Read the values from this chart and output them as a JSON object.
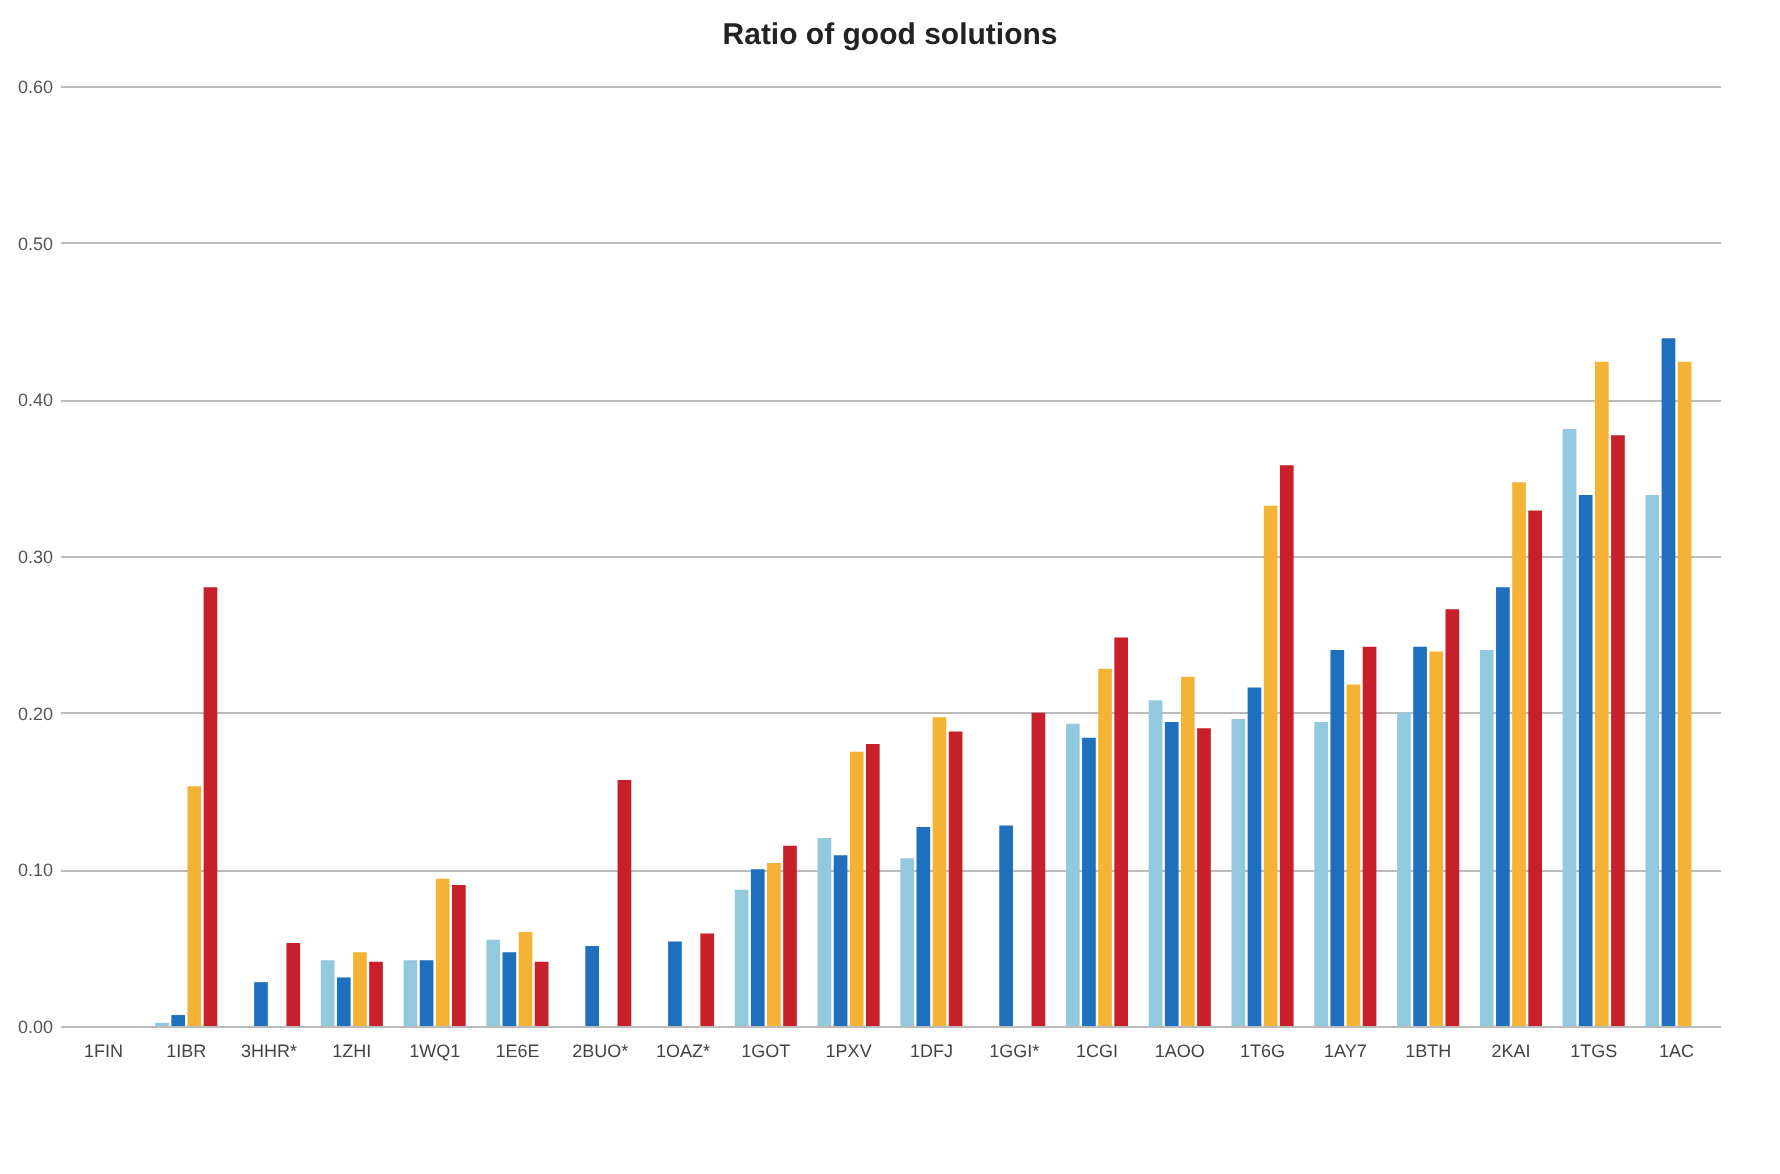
{
  "chart_data": {
    "type": "bar",
    "title": "Ratio of good solutions",
    "categories": [
      "1FIN",
      "1IBR",
      "3HHR*",
      "1ZHI",
      "1WQ1",
      "1E6E",
      "2BUO*",
      "1OAZ*",
      "1GOT",
      "1PXV",
      "1DFJ",
      "1GGI*",
      "1CGI",
      "1AOO",
      "1T6G",
      "1AY7",
      "1BTH",
      "2KAI",
      "1TGS",
      "1AC"
    ],
    "series": [
      {
        "color": "#92c9df",
        "values": [
          0,
          0.002,
          0,
          0.042,
          0.042,
          0.055,
          0,
          0,
          0.087,
          0.12,
          0.107,
          0,
          0.193,
          0.208,
          0.196,
          0.194,
          0.2,
          0.24,
          0.381,
          0.339
        ]
      },
      {
        "color": "#1f6fbf",
        "values": [
          0,
          0.007,
          0.028,
          0.031,
          0.042,
          0.047,
          0.051,
          0.054,
          0.1,
          0.109,
          0.127,
          0.128,
          0.184,
          0.194,
          0.216,
          0.24,
          0.242,
          0.28,
          0.339,
          0.439
        ]
      },
      {
        "color": "#f5b335",
        "values": [
          0,
          0.153,
          0,
          0.047,
          0.094,
          0.06,
          0,
          0,
          0.104,
          0.175,
          0.197,
          0,
          0.228,
          0.223,
          0.332,
          0.218,
          0.239,
          0.347,
          0.424,
          0.424
        ]
      },
      {
        "color": "#c8202b",
        "values": [
          0,
          0.28,
          0.053,
          0.041,
          0.09,
          0.041,
          0.157,
          0.059,
          0.115,
          0.18,
          0.188,
          0.2,
          0.248,
          0.19,
          0.358,
          0.242,
          0.266,
          0.329,
          0.377,
          null
        ]
      }
    ],
    "ylim": [
      0,
      0.6
    ],
    "yticks": [
      {
        "value": 0,
        "label": "0.00"
      },
      {
        "value": 0.1,
        "label": "0.10"
      },
      {
        "value": 0.2,
        "label": "0.20"
      },
      {
        "value": 0.3,
        "label": "0.30"
      },
      {
        "value": 0.4,
        "label": "0.40"
      },
      {
        "value": 0.5,
        "label": "0.50"
      },
      {
        "value": 0.6,
        "label": "0.60"
      }
    ],
    "grid": "y",
    "legend": false
  }
}
